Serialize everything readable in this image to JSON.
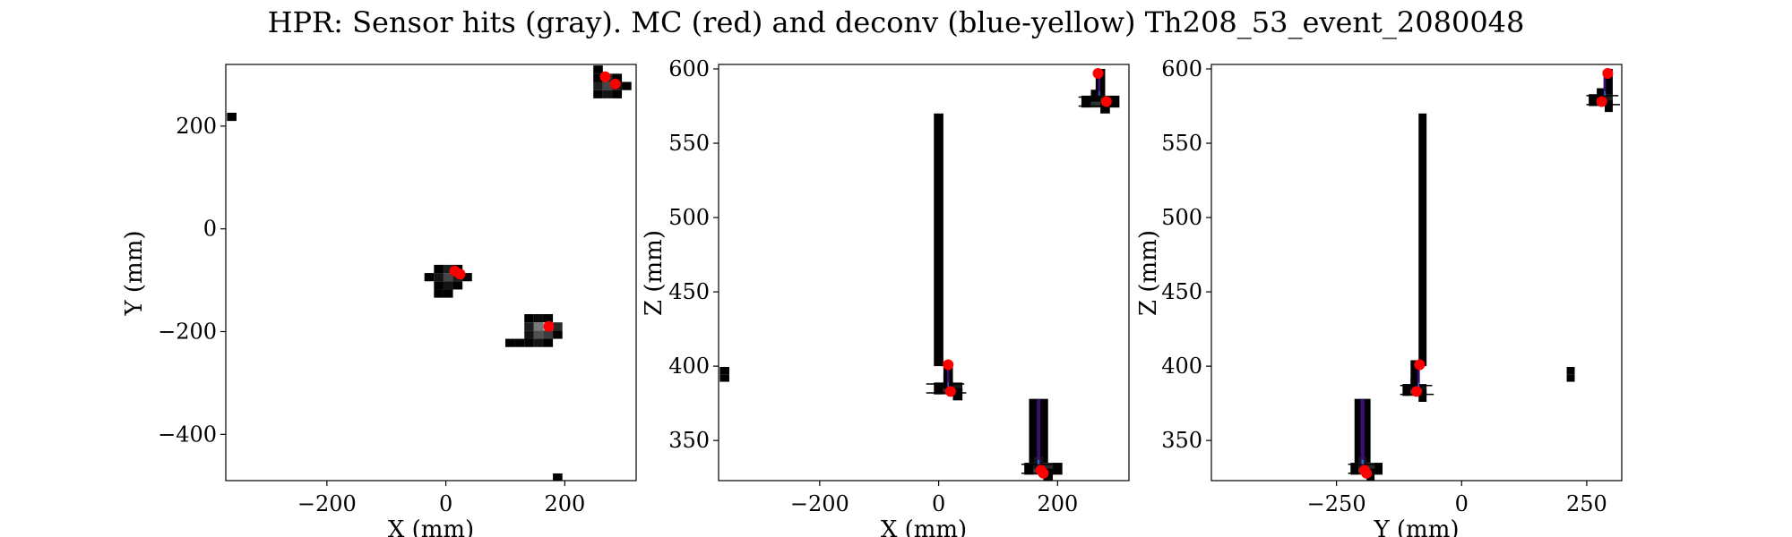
{
  "figure": {
    "title": "HPR: Sensor hits (gray). MC (red) and deconv (blue-yellow) Th208_53_event_2080048"
  },
  "chart_data": [
    {
      "type": "heatmap",
      "id": "xy",
      "xlabel": "X (mm)",
      "ylabel": "Y (mm)",
      "xlim": [
        -370,
        320
      ],
      "ylim": [
        -490,
        320
      ],
      "xticks": [
        -200,
        0,
        200
      ],
      "yticks": [
        -400,
        -200,
        0,
        200
      ],
      "pixel_size": [
        16,
        16
      ],
      "sensor_hits": [
        [
          -360,
          218,
          0
        ],
        [
          188,
          -484,
          0
        ],
        [
          256,
          310,
          0
        ],
        [
          256,
          294,
          0
        ],
        [
          272,
          294,
          40
        ],
        [
          288,
          294,
          0
        ],
        [
          256,
          278,
          30
        ],
        [
          272,
          278,
          70
        ],
        [
          288,
          278,
          20
        ],
        [
          304,
          278,
          0
        ],
        [
          256,
          262,
          0
        ],
        [
          272,
          262,
          20
        ],
        [
          288,
          262,
          0
        ],
        [
          -12,
          -78,
          0
        ],
        [
          4,
          -78,
          30
        ],
        [
          20,
          -78,
          0
        ],
        [
          -12,
          -94,
          20
        ],
        [
          4,
          -94,
          70
        ],
        [
          20,
          -94,
          30
        ],
        [
          36,
          -94,
          0
        ],
        [
          -28,
          -94,
          0
        ],
        [
          -12,
          -110,
          0
        ],
        [
          4,
          -110,
          20
        ],
        [
          20,
          -110,
          0
        ],
        [
          -12,
          -126,
          0
        ],
        [
          4,
          -126,
          0
        ],
        [
          140,
          -174,
          0
        ],
        [
          156,
          -174,
          10
        ],
        [
          172,
          -174,
          0
        ],
        [
          140,
          -190,
          30
        ],
        [
          156,
          -190,
          120
        ],
        [
          172,
          -190,
          200
        ],
        [
          188,
          -190,
          40
        ],
        [
          140,
          -206,
          20
        ],
        [
          156,
          -206,
          80
        ],
        [
          172,
          -206,
          60
        ],
        [
          188,
          -206,
          0
        ],
        [
          140,
          -222,
          0
        ],
        [
          156,
          -222,
          20
        ],
        [
          172,
          -222,
          0
        ],
        [
          124,
          -222,
          0
        ],
        [
          108,
          -222,
          0
        ]
      ],
      "mc_points": [
        [
          268,
          296
        ],
        [
          285,
          282
        ],
        [
          15,
          -82
        ],
        [
          24,
          -88
        ],
        [
          173,
          -190
        ]
      ]
    },
    {
      "type": "heatmap",
      "id": "xz",
      "xlabel": "X (mm)",
      "ylabel": "Z (mm)",
      "xlim": [
        -370,
        320
      ],
      "ylim": [
        323,
        603
      ],
      "xticks": [
        -200,
        0,
        200
      ],
      "yticks": [
        350,
        400,
        450,
        500,
        550,
        600
      ],
      "pixel_size": [
        16,
        5
      ],
      "sensor_hits": [
        [
          -360,
          397,
          0
        ],
        [
          -360,
          392,
          0
        ]
      ],
      "sensor_columns": [
        {
          "x": 0,
          "z_from": 400,
          "z_to": 570,
          "width": 16
        },
        {
          "x": 160,
          "z_from": 335,
          "z_to": 378,
          "width": 16
        },
        {
          "x": 176,
          "z_from": 335,
          "z_to": 378,
          "width": 16
        },
        {
          "x": 16,
          "z_from": 385,
          "z_to": 400,
          "width": 16
        },
        {
          "x": 272,
          "z_from": 580,
          "z_to": 600,
          "width": 16
        }
      ],
      "sensor_clusters": [
        {
          "x": 8,
          "z": 385,
          "pixels": [
            [
              -8,
              0,
              0
            ],
            [
              8,
              0,
              50
            ],
            [
              24,
              0,
              20
            ],
            [
              8,
              4,
              0
            ],
            [
              24,
              -4,
              0
            ]
          ]
        },
        {
          "x": 168,
          "z": 331,
          "pixels": [
            [
              -16,
              0,
              0
            ],
            [
              0,
              0,
              60
            ],
            [
              16,
              0,
              40
            ],
            [
              32,
              0,
              0
            ],
            [
              0,
              4,
              20
            ],
            [
              16,
              -4,
              0
            ]
          ]
        },
        {
          "x": 264,
          "z": 578,
          "pixels": [
            [
              -16,
              0,
              0
            ],
            [
              0,
              0,
              50
            ],
            [
              16,
              0,
              30
            ],
            [
              32,
              0,
              0
            ],
            [
              0,
              4,
              0
            ],
            [
              16,
              -4,
              0
            ]
          ]
        }
      ],
      "deconv_columns": [
        {
          "x": 168,
          "z_from": 334,
          "z_to": 378,
          "width": 6
        },
        {
          "x": 16,
          "z_from": 386,
          "z_to": 400,
          "width": 4
        },
        {
          "x": 270,
          "z_from": 582,
          "z_to": 598,
          "width": 4
        }
      ],
      "mc_points": [
        [
          16,
          401
        ],
        [
          20,
          383
        ],
        [
          172,
          330
        ],
        [
          176,
          328
        ],
        [
          268,
          597
        ],
        [
          282,
          578
        ]
      ]
    },
    {
      "type": "heatmap",
      "id": "yz",
      "xlabel": "Y (mm)",
      "ylabel": "Z (mm)",
      "xlim": [
        -500,
        320
      ],
      "ylim": [
        323,
        603
      ],
      "xticks": [
        -250,
        0,
        250
      ],
      "yticks": [
        350,
        400,
        450,
        500,
        550,
        600
      ],
      "pixel_size": [
        16,
        5
      ],
      "sensor_hits": [
        [
          218,
          397,
          0
        ],
        [
          218,
          392,
          0
        ]
      ],
      "sensor_columns": [
        {
          "x": -78,
          "z_from": 400,
          "z_to": 570,
          "width": 16
        },
        {
          "x": -206,
          "z_from": 335,
          "z_to": 378,
          "width": 16
        },
        {
          "x": -190,
          "z_from": 335,
          "z_to": 378,
          "width": 16
        },
        {
          "x": -94,
          "z_from": 385,
          "z_to": 404,
          "width": 16
        },
        {
          "x": 294,
          "z_from": 582,
          "z_to": 600,
          "width": 16
        }
      ],
      "sensor_clusters": [
        {
          "x": -94,
          "z": 384,
          "pixels": [
            [
              -16,
              0,
              0
            ],
            [
              0,
              0,
              50
            ],
            [
              16,
              0,
              20
            ],
            [
              0,
              4,
              0
            ],
            [
              16,
              -4,
              0
            ]
          ]
        },
        {
          "x": -198,
          "z": 331,
          "pixels": [
            [
              -16,
              0,
              0
            ],
            [
              0,
              0,
              60
            ],
            [
              16,
              0,
              40
            ],
            [
              32,
              0,
              0
            ],
            [
              0,
              4,
              20
            ],
            [
              16,
              -4,
              0
            ]
          ]
        },
        {
          "x": 278,
          "z": 579,
          "pixels": [
            [
              -16,
              0,
              0
            ],
            [
              0,
              0,
              50
            ],
            [
              16,
              0,
              30
            ],
            [
              0,
              4,
              0
            ],
            [
              16,
              -4,
              0
            ]
          ]
        }
      ],
      "deconv_columns": [
        {
          "x": -198,
          "z_from": 334,
          "z_to": 378,
          "width": 8
        },
        {
          "x": -86,
          "z_from": 386,
          "z_to": 400,
          "width": 5
        },
        {
          "x": 286,
          "z_from": 582,
          "z_to": 598,
          "width": 5
        }
      ],
      "mc_points": [
        [
          -84,
          401
        ],
        [
          -90,
          383
        ],
        [
          -194,
          330
        ],
        [
          -190,
          328
        ],
        [
          292,
          597
        ],
        [
          280,
          578
        ]
      ]
    }
  ],
  "colors": {
    "mc": "#ff0000",
    "deconv_dark": "#3b0f70",
    "deconv_mid": "#2c6fbb",
    "deconv_light": "#d9e021",
    "frame": "#000000"
  }
}
